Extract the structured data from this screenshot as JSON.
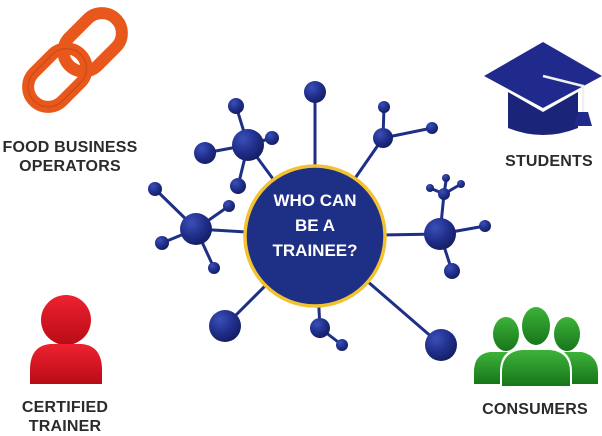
{
  "center": {
    "lines": [
      "WHO CAN",
      "BE A",
      "TRAINEE?"
    ]
  },
  "groups": {
    "food_business_operators": {
      "lines": [
        "FOOD BUSINESS",
        "OPERATORS"
      ],
      "icon": "chain-link-icon",
      "color": "#e8581c"
    },
    "students": {
      "lines": [
        "STUDENTS"
      ],
      "icon": "graduation-cap-icon",
      "color": "#1f2a8c"
    },
    "certified_trainer": {
      "lines": [
        "CERTIFIED",
        "TRAINER"
      ],
      "icon": "person-icon",
      "color": "#d9121e"
    },
    "consumers": {
      "lines": [
        "CONSUMERS"
      ],
      "icon": "group-people-icon",
      "color": "#1f8a22"
    }
  },
  "colors": {
    "hub": "#1e2f86",
    "hub_ring": "#f2c230",
    "label_text": "#2b2b2b"
  }
}
